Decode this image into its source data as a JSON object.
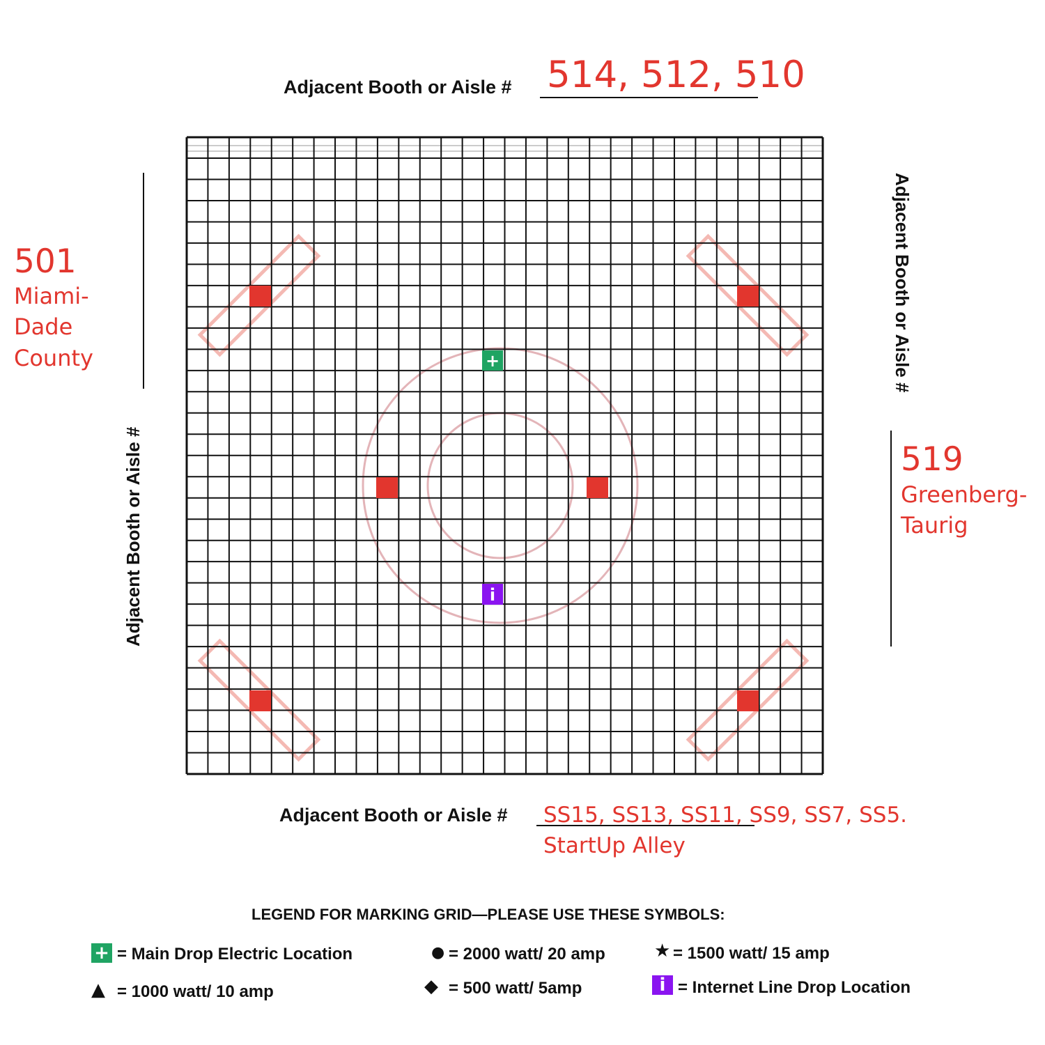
{
  "colors": {
    "accent_red": "#e2362e",
    "electric_green": "#1fa463",
    "internet_purple": "#8a14f0",
    "grid_line": "#111111",
    "ghost_pink": "#f4b9b3",
    "circle_pink": "#e3b4b8"
  },
  "top": {
    "label": "Adjacent Booth or Aisle #",
    "value": "514, 512, 510"
  },
  "left": {
    "label": "Adjacent Booth or Aisle #",
    "booth": "501",
    "name_lines": [
      "Miami-",
      "Dade",
      "County"
    ]
  },
  "right": {
    "label": "Adjacent Booth or Aisle #",
    "booth": "519",
    "name_lines": [
      "Greenberg-",
      "Taurig"
    ]
  },
  "bottom": {
    "label": "Adjacent Booth or Aisle #",
    "value_line1": "SS15, SS13, SS11, SS9, SS7, SS5.",
    "value_line2": "StartUp Alley"
  },
  "grid": {
    "markers": {
      "main_drop_electric": {
        "icon": "plus-icon",
        "glyph": "+"
      },
      "internet_drop": {
        "icon": "info-icon",
        "glyph": "i"
      }
    }
  },
  "legend": {
    "title": "LEGEND FOR MARKING GRID—PLEASE USE THESE SYMBOLS:",
    "items": [
      {
        "symbol": "plus-box",
        "glyph": "+",
        "text": "= Main Drop Electric Location"
      },
      {
        "symbol": "circle",
        "glyph": "●",
        "text": "=  2000 watt/ 20 amp"
      },
      {
        "symbol": "star",
        "glyph": "★",
        "text": "= 1500 watt/ 15 amp"
      },
      {
        "symbol": "triangle",
        "glyph": "▲",
        "text": "= 1000 watt/ 10 amp"
      },
      {
        "symbol": "diamond",
        "glyph": "◆",
        "text": "= 500 watt/ 5amp"
      },
      {
        "symbol": "i-box",
        "glyph": "i",
        "text": "= Internet Line Drop Location"
      }
    ]
  }
}
